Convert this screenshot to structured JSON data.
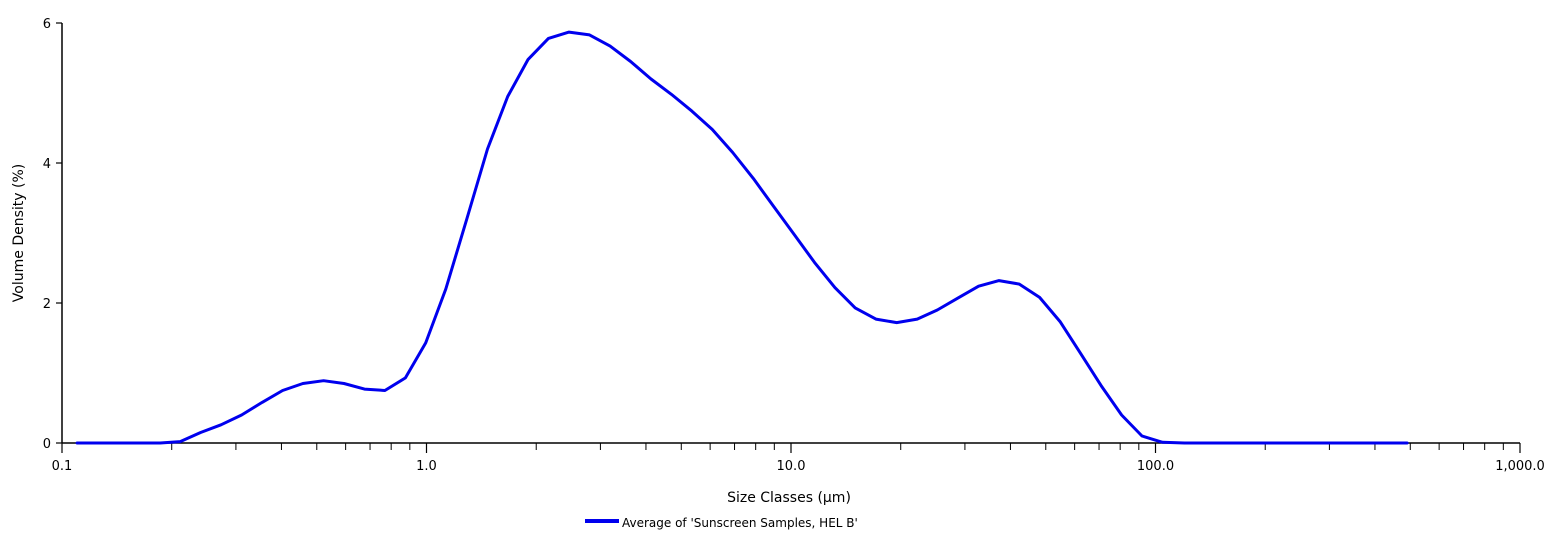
{
  "chart_data": {
    "type": "line",
    "title": "",
    "xlabel": "Size Classes (µm)",
    "ylabel": "Volume Density (%)",
    "xscale": "log",
    "xlim": [
      0.1,
      1000
    ],
    "ylim": [
      0,
      6
    ],
    "x_ticks": [
      0.1,
      1,
      10,
      100,
      1000
    ],
    "x_tick_labels": [
      "0.1",
      "1.0",
      "10.0",
      "100.0",
      "1,000.0"
    ],
    "y_ticks": [
      0,
      2,
      4,
      6
    ],
    "y_tick_labels": [
      "0",
      "2",
      "4",
      "6"
    ],
    "grid": false,
    "legend_position": "bottom-center",
    "series": [
      {
        "name": "Average of 'Sunscreen Samples, HEL B'",
        "color": "#0000ee",
        "x": [
          0.11,
          0.126,
          0.143,
          0.163,
          0.186,
          0.211,
          0.24,
          0.273,
          0.311,
          0.354,
          0.403,
          0.458,
          0.522,
          0.594,
          0.676,
          0.769,
          0.875,
          0.995,
          1.13,
          1.29,
          1.47,
          1.67,
          1.9,
          2.16,
          2.46,
          2.8,
          3.19,
          3.63,
          4.13,
          4.7,
          5.35,
          6.08,
          6.92,
          7.88,
          8.96,
          10.2,
          11.6,
          13.2,
          15.0,
          17.1,
          19.5,
          22.2,
          25.2,
          28.7,
          32.7,
          37.2,
          42.3,
          48.1,
          54.8,
          62.3,
          70.9,
          80.7,
          91.8,
          104.5,
          120,
          150,
          200,
          300,
          400,
          490
        ],
        "y": [
          0,
          0,
          0,
          0,
          0,
          0.02,
          0.15,
          0.26,
          0.4,
          0.58,
          0.75,
          0.85,
          0.89,
          0.85,
          0.77,
          0.75,
          0.93,
          1.43,
          2.2,
          3.2,
          4.2,
          4.95,
          5.48,
          5.78,
          5.87,
          5.83,
          5.67,
          5.45,
          5.2,
          4.98,
          4.74,
          4.48,
          4.15,
          3.78,
          3.38,
          2.98,
          2.58,
          2.22,
          1.93,
          1.77,
          1.72,
          1.77,
          1.9,
          2.07,
          2.24,
          2.32,
          2.27,
          2.08,
          1.73,
          1.28,
          0.82,
          0.4,
          0.1,
          0.01,
          0,
          0,
          0,
          0,
          0,
          0
        ]
      }
    ]
  }
}
